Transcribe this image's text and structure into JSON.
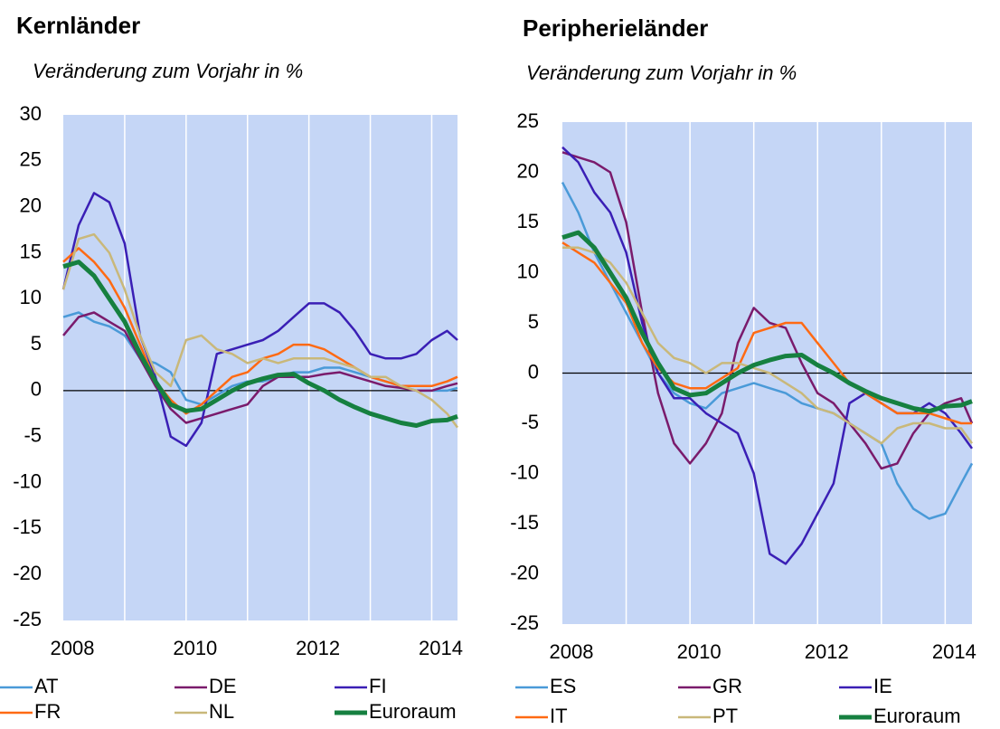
{
  "chart_data": [
    {
      "type": "line",
      "title": "Kernländer",
      "subtitle": "Veränderung zum Vorjahr in %",
      "x": [
        2008,
        2008.25,
        2008.5,
        2008.75,
        2009,
        2009.25,
        2009.5,
        2009.75,
        2010,
        2010.25,
        2010.5,
        2010.75,
        2011,
        2011.25,
        2011.5,
        2011.75,
        2012,
        2012.25,
        2012.5,
        2012.75,
        2013,
        2013.25,
        2013.5,
        2013.75,
        2014,
        2014.25,
        2014.42
      ],
      "xlim": [
        2008,
        2014.42
      ],
      "xticks": [
        2008,
        2010,
        2012,
        2014
      ],
      "xgrid": [
        2009,
        2010,
        2011,
        2012,
        2013,
        2014
      ],
      "ylim": [
        -25,
        30
      ],
      "yticks": [
        -25,
        -20,
        -15,
        -10,
        -5,
        0,
        5,
        10,
        15,
        20,
        25,
        30
      ],
      "zero_line": true,
      "background": "#c5d6f6",
      "series": [
        {
          "name": "AT",
          "color": "#4a9ad8",
          "values": [
            8,
            8.5,
            7.5,
            7,
            6,
            3.5,
            3,
            2,
            -1,
            -1.5,
            -0.5,
            0.5,
            1,
            1,
            1.5,
            2,
            2,
            2.5,
            2.5,
            2,
            1.5,
            1,
            0.5,
            0,
            0,
            0,
            0.3
          ]
        },
        {
          "name": "DE",
          "color": "#7a1b6c",
          "values": [
            6,
            8,
            8.5,
            7.5,
            6.5,
            3.5,
            0.5,
            -2,
            -3.5,
            -3,
            -2.5,
            -2,
            -1.5,
            0.5,
            1.5,
            1.5,
            1.5,
            1.8,
            2,
            1.5,
            1,
            0.5,
            0.3,
            0,
            0,
            0.5,
            0.8
          ]
        },
        {
          "name": "FI",
          "color": "#3a1fb5",
          "values": [
            11,
            18,
            21.5,
            20.5,
            16,
            6,
            1.5,
            -5,
            -6,
            -3.5,
            4,
            4.5,
            5,
            5.5,
            6.5,
            8,
            9.5,
            9.5,
            8.5,
            6.5,
            4,
            3.5,
            3.5,
            4,
            5.5,
            6.5,
            5.5
          ]
        },
        {
          "name": "FR",
          "color": "#ff6a13",
          "values": [
            14,
            15.5,
            14,
            12,
            9,
            5,
            1,
            -1,
            -2.5,
            -1.5,
            0,
            1.5,
            2,
            3.5,
            4,
            5,
            5,
            4.5,
            3.5,
            2.5,
            1.5,
            1,
            0.5,
            0.5,
            0.5,
            1,
            1.5
          ]
        },
        {
          "name": "NL",
          "color": "#c9b87a",
          "values": [
            11,
            16.5,
            17,
            15,
            11,
            6,
            2,
            0.5,
            5.5,
            6,
            4.5,
            4,
            3,
            3.5,
            3,
            3.5,
            3.5,
            3.5,
            3,
            2.5,
            1.5,
            1.5,
            0.5,
            0,
            -1,
            -2.5,
            -4
          ]
        },
        {
          "name": "Euroraum",
          "color": "#168040",
          "values": [
            13.5,
            14,
            12.5,
            10,
            7.5,
            4,
            1,
            -1.5,
            -2.2,
            -2,
            -1,
            0,
            0.8,
            1.3,
            1.7,
            1.8,
            0.8,
            0,
            -1,
            -1.8,
            -2.5,
            -3,
            -3.5,
            -3.8,
            -3.3,
            -3.2,
            -2.8
          ]
        }
      ]
    },
    {
      "type": "line",
      "title": "Peripherieländer",
      "subtitle": "Veränderung zum Vorjahr in %",
      "x": [
        2008,
        2008.25,
        2008.5,
        2008.75,
        2009,
        2009.25,
        2009.5,
        2009.75,
        2010,
        2010.25,
        2010.5,
        2010.75,
        2011,
        2011.25,
        2011.5,
        2011.75,
        2012,
        2012.25,
        2012.5,
        2012.75,
        2013,
        2013.25,
        2013.5,
        2013.75,
        2014,
        2014.25,
        2014.42
      ],
      "xlim": [
        2008,
        2014.42
      ],
      "xticks": [
        2008,
        2010,
        2012,
        2014
      ],
      "xgrid": [
        2009,
        2010,
        2011,
        2012,
        2013,
        2014
      ],
      "ylim": [
        -25,
        25
      ],
      "yticks": [
        -25,
        -20,
        -15,
        -10,
        -5,
        0,
        5,
        10,
        15,
        20,
        25
      ],
      "zero_line": true,
      "background": "#c5d6f6",
      "series": [
        {
          "name": "ES",
          "color": "#4a9ad8",
          "values": [
            19,
            16,
            12,
            9,
            6,
            3,
            0,
            -2,
            -3,
            -3.5,
            -2,
            -1.5,
            -1,
            -1.5,
            -2,
            -3,
            -3.5,
            -4,
            -5,
            -6,
            -7,
            -11,
            -13.5,
            -14.5,
            -14,
            -11,
            -9
          ]
        },
        {
          "name": "GR",
          "color": "#7a1b6c",
          "values": [
            22,
            21.5,
            21,
            20,
            15,
            6,
            -2,
            -7,
            -9,
            -7,
            -4,
            3,
            6.5,
            5,
            4.5,
            1,
            -2,
            -3,
            -5,
            -7,
            -9.5,
            -9,
            -6,
            -4,
            -3,
            -2.5,
            -5
          ]
        },
        {
          "name": "IE",
          "color": "#3a1fb5",
          "values": [
            22.5,
            21,
            18,
            16,
            12,
            5,
            0,
            -2.5,
            -2.5,
            -4,
            -5,
            -6,
            -10,
            -18,
            -19,
            -17,
            -14,
            -11,
            -3,
            -2,
            -3,
            -4,
            -4,
            -3,
            -4,
            -6,
            -7.5
          ]
        },
        {
          "name": "IT",
          "color": "#ff6a13",
          "values": [
            13,
            12,
            11,
            9,
            7,
            3,
            0.5,
            -1,
            -1.5,
            -1.5,
            -0.5,
            0.5,
            4,
            4.5,
            5,
            5,
            3,
            1,
            -1,
            -2,
            -3,
            -4,
            -4,
            -4,
            -4.5,
            -5,
            -5
          ]
        },
        {
          "name": "PT",
          "color": "#c9b87a",
          "values": [
            12.5,
            12.5,
            12,
            11,
            9,
            6,
            3,
            1.5,
            1,
            0,
            1,
            1,
            0.5,
            0,
            -1,
            -2,
            -3.5,
            -4,
            -5,
            -6,
            -7,
            -5.5,
            -5,
            -5,
            -5.5,
            -5.5,
            -7
          ]
        },
        {
          "name": "Euroraum",
          "color": "#168040",
          "values": [
            13.5,
            14,
            12.5,
            10,
            7.5,
            4,
            1,
            -1.5,
            -2.2,
            -2,
            -1,
            0,
            0.8,
            1.3,
            1.7,
            1.8,
            0.8,
            0,
            -1,
            -1.8,
            -2.5,
            -3,
            -3.5,
            -3.8,
            -3.3,
            -3.2,
            -2.8
          ]
        }
      ]
    }
  ]
}
